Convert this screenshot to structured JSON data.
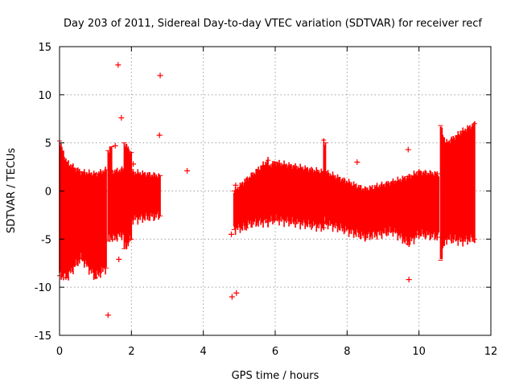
{
  "chart_data": {
    "type": "scatter",
    "title": "Day 203 of 2011, Sidereal Day-to-day VTEC variation (SDTVAR) for receiver recf",
    "xlabel": "GPS time / hours",
    "ylabel": "SDTVAR / TECUs",
    "xlim": [
      0,
      12
    ],
    "ylim": [
      -15,
      15
    ],
    "x_ticks": [
      "0",
      "2",
      "4",
      "6",
      "8",
      "10",
      "12"
    ],
    "y_ticks": [
      "15",
      "10",
      "5",
      "0",
      "-5",
      "-10",
      "-15"
    ],
    "x_tick_values": [
      0,
      2,
      4,
      6,
      8,
      10,
      12
    ],
    "y_tick_values": [
      15,
      10,
      5,
      0,
      -5,
      -10,
      -15
    ],
    "grid": true,
    "series_color": "#ff0000",
    "series": [
      {
        "name": "SDTVAR",
        "style": "points with error bars",
        "segments": [
          {
            "x_start": 0.0,
            "x_end": 0.2,
            "low_start": -8.8,
            "low_end": -9.0,
            "high_start": 5.2,
            "high_end": 3.0
          },
          {
            "x_start": 0.2,
            "x_end": 0.6,
            "low_start": -9.0,
            "low_end": -7.0,
            "high_start": 3.0,
            "high_end": 2.0
          },
          {
            "x_start": 0.6,
            "x_end": 1.0,
            "low_start": -7.0,
            "low_end": -9.0,
            "high_start": 2.0,
            "high_end": 1.8
          },
          {
            "x_start": 1.0,
            "x_end": 1.3,
            "low_start": -9.0,
            "low_end": -8.0,
            "high_start": 1.8,
            "high_end": 2.2
          },
          {
            "x_start": 1.35,
            "x_end": 1.45,
            "low_start": -5.2,
            "low_end": -4.6,
            "high_start": 4.2,
            "high_end": 4.6
          },
          {
            "x_start": 1.45,
            "x_end": 1.8,
            "low_start": -5.0,
            "low_end": -4.5,
            "high_start": 2.0,
            "high_end": 2.3
          },
          {
            "x_start": 1.8,
            "x_end": 2.0,
            "low_start": -6.0,
            "low_end": -5.0,
            "high_start": 5.0,
            "high_end": 4.0
          },
          {
            "x_start": 2.0,
            "x_end": 2.8,
            "low_start": -3.0,
            "low_end": -2.6,
            "high_start": 2.0,
            "high_end": 1.6
          },
          {
            "x_start": 4.85,
            "x_end": 5.2,
            "low_start": -4.0,
            "low_end": -3.8,
            "high_start": 0.0,
            "high_end": 1.2
          },
          {
            "x_start": 5.2,
            "x_end": 5.8,
            "low_start": -3.5,
            "low_end": -3.2,
            "high_start": 1.2,
            "high_end": 3.2
          },
          {
            "x_start": 5.8,
            "x_end": 6.0,
            "low_start": -3.2,
            "low_end": -3.0,
            "high_start": 2.6,
            "high_end": 3.0
          },
          {
            "x_start": 6.0,
            "x_end": 7.35,
            "low_start": -3.0,
            "low_end": -3.8,
            "high_start": 3.0,
            "high_end": 2.0
          },
          {
            "x_start": 7.35,
            "x_end": 7.4,
            "low_start": -3.2,
            "low_end": -3.3,
            "high_start": 5.3,
            "high_end": 5.0
          },
          {
            "x_start": 7.4,
            "x_end": 8.5,
            "low_start": -3.4,
            "low_end": -4.8,
            "high_start": 2.0,
            "high_end": 0.2
          },
          {
            "x_start": 8.5,
            "x_end": 9.3,
            "low_start": -4.8,
            "low_end": -4.2,
            "high_start": 0.2,
            "high_end": 1.0
          },
          {
            "x_start": 9.3,
            "x_end": 9.7,
            "low_start": -4.2,
            "low_end": -5.5,
            "high_start": 1.0,
            "high_end": 1.5
          },
          {
            "x_start": 9.7,
            "x_end": 10.0,
            "low_start": -5.5,
            "low_end": -4.5,
            "high_start": 1.5,
            "high_end": 2.0
          },
          {
            "x_start": 10.0,
            "x_end": 10.55,
            "low_start": -4.5,
            "low_end": -4.8,
            "high_start": 2.0,
            "high_end": 1.8
          },
          {
            "x_start": 10.6,
            "x_end": 10.75,
            "low_start": -7.2,
            "low_end": -5.0,
            "high_start": 6.8,
            "high_end": 5.0
          },
          {
            "x_start": 10.75,
            "x_end": 11.2,
            "low_start": -5.0,
            "low_end": -5.2,
            "high_start": 5.0,
            "high_end": 6.2
          },
          {
            "x_start": 11.2,
            "x_end": 11.55,
            "low_start": -5.2,
            "low_end": -5.0,
            "high_start": 6.2,
            "high_end": 7.0
          }
        ],
        "outliers": [
          {
            "x": 1.63,
            "y": 13.1
          },
          {
            "x": 2.8,
            "y": 12.0
          },
          {
            "x": 1.72,
            "y": 7.6
          },
          {
            "x": 3.55,
            "y": 2.1
          },
          {
            "x": 8.28,
            "y": 3.0
          },
          {
            "x": 1.35,
            "y": -12.9
          },
          {
            "x": 4.8,
            "y": -11.0
          },
          {
            "x": 4.92,
            "y": -10.6
          },
          {
            "x": 4.78,
            "y": -4.5
          },
          {
            "x": 4.9,
            "y": 0.6
          },
          {
            "x": 1.55,
            "y": 4.7
          },
          {
            "x": 2.05,
            "y": 2.8
          },
          {
            "x": 9.7,
            "y": 4.3
          },
          {
            "x": 9.72,
            "y": -9.2
          },
          {
            "x": 1.65,
            "y": -7.1
          },
          {
            "x": 2.78,
            "y": 5.8
          }
        ]
      }
    ]
  }
}
